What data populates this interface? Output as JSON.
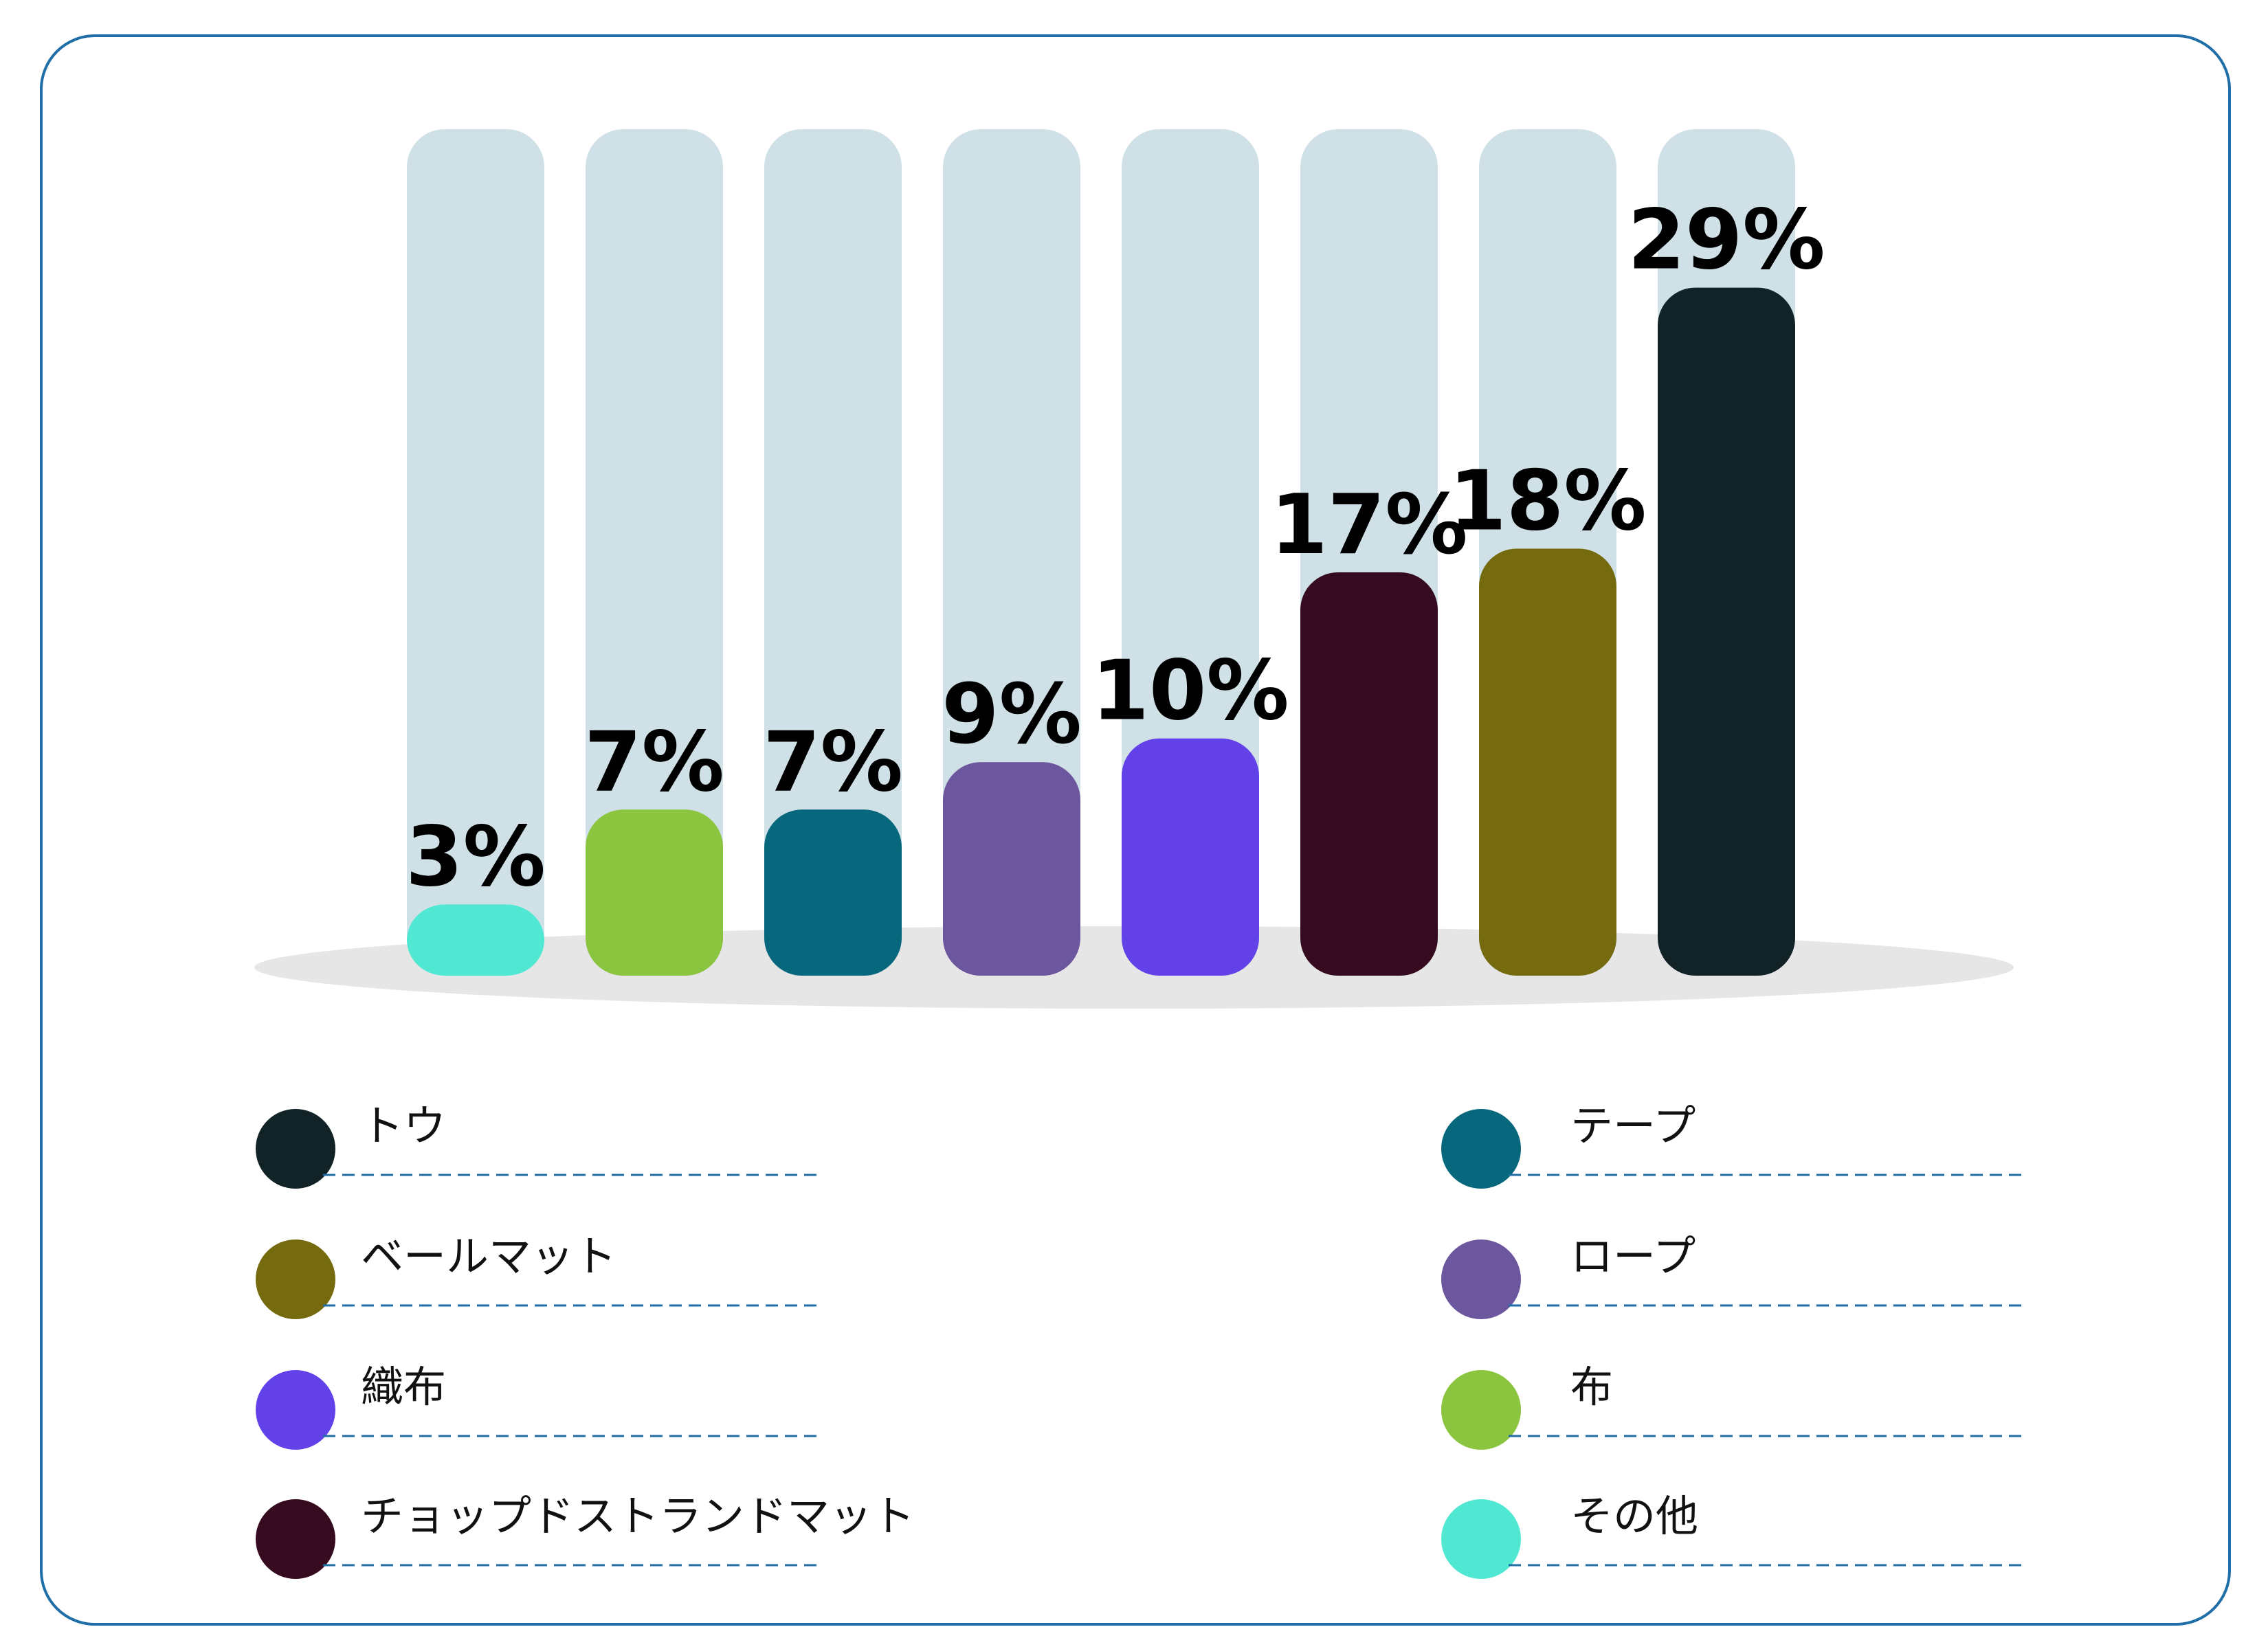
{
  "chart_data": {
    "type": "bar",
    "categories": [
      "その他",
      "布",
      "テープ",
      "ロープ",
      "織布",
      "チョップドストランドマット",
      "ベールマット",
      "トウ"
    ],
    "values": [
      3,
      7,
      7,
      9,
      10,
      17,
      18,
      29
    ],
    "value_labels": [
      "3%",
      "7%",
      "7%",
      "9%",
      "10%",
      "17%",
      "18%",
      "29%"
    ],
    "colors": [
      "#50e8d2",
      "#8bc43f",
      "#07677c",
      "#6c569e",
      "#6242e8",
      "#360a1f",
      "#756a0e",
      "#112326"
    ],
    "track_color": "#cfe1e6",
    "ylim": [
      0,
      32
    ],
    "title": "",
    "xlabel": "",
    "ylabel": ""
  },
  "legend": {
    "left": [
      {
        "label": "トウ",
        "color": "#112326"
      },
      {
        "label": "ベールマット",
        "color": "#756a0e"
      },
      {
        "label": "織布",
        "color": "#6242e8"
      },
      {
        "label": "チョップドストランドマット",
        "color": "#360a1f"
      }
    ],
    "right": [
      {
        "label": "テープ",
        "color": "#07677c"
      },
      {
        "label": "ロープ",
        "color": "#6c569e"
      },
      {
        "label": "布",
        "color": "#8bc43f"
      },
      {
        "label": "その他",
        "color": "#50e8d2"
      }
    ]
  }
}
